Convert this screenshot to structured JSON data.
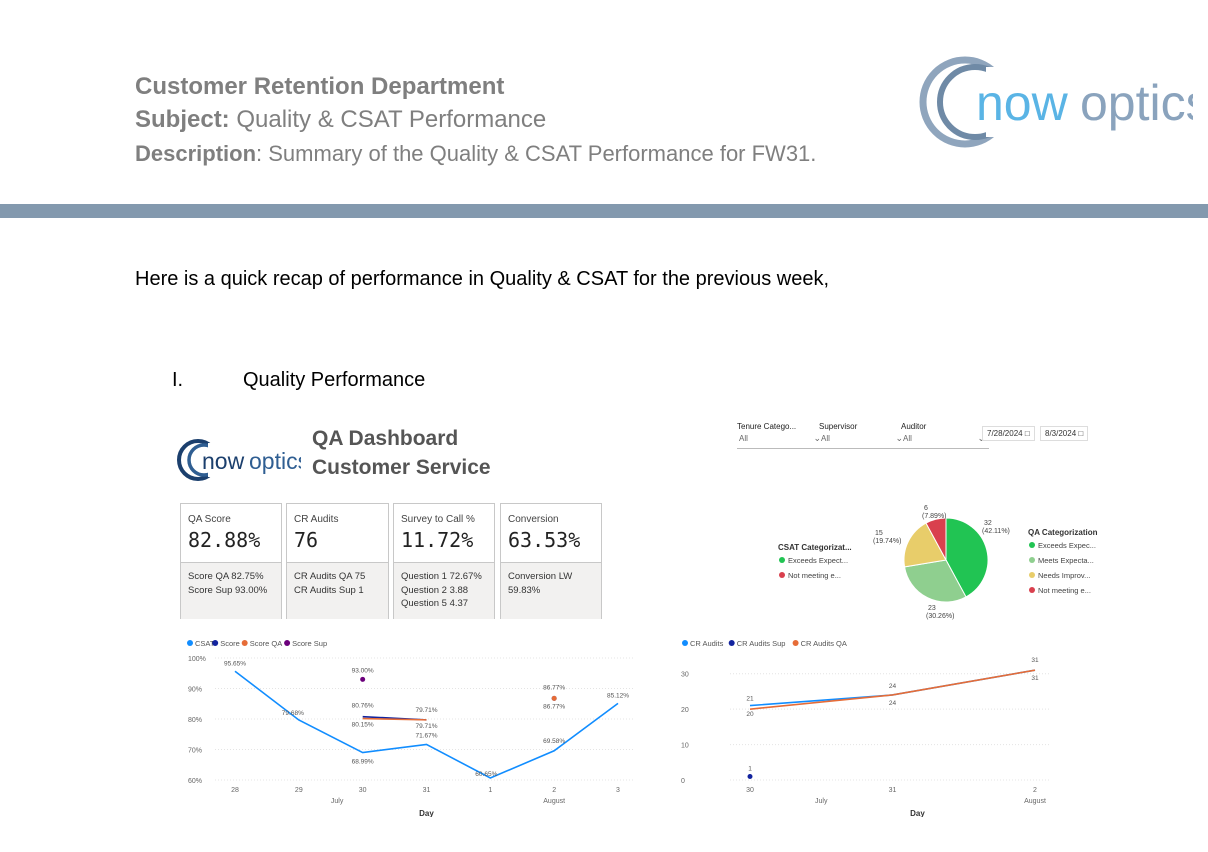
{
  "header": {
    "line1": "Customer Retention Department",
    "subject_label": "Subject:",
    "subject_text": " Quality & CSAT Performance",
    "description_label": "Description",
    "description_text": ": Summary of the Quality & CSAT Performance for FW31."
  },
  "logo_text": {
    "now": "now",
    "optics": "optics"
  },
  "intro": "Here is a quick recap of performance in Quality & CSAT for the previous week,",
  "section": {
    "number": "I.",
    "title": "Quality Performance"
  },
  "dashboard": {
    "title1": "QA Dashboard",
    "title2": "Customer Service",
    "filters": [
      {
        "label": "Tenure Catego...",
        "value": "All"
      },
      {
        "label": "Supervisor",
        "value": "All"
      },
      {
        "label": "Auditor",
        "value": "All"
      }
    ],
    "date_from": "7/28/2024",
    "date_to": "8/3/2024",
    "cards": [
      {
        "label": "QA Score",
        "value": "82.88%",
        "lines": [
          "Score QA 82.75%",
          "Score Sup 93.00%"
        ]
      },
      {
        "label": "CR Audits",
        "value": "76",
        "lines": [
          "CR Audits QA 75",
          "CR Audits Sup 1"
        ]
      },
      {
        "label": "Survey to Call %",
        "value": "11.72%",
        "lines": [
          "Question 1 72.67%",
          "Question 2 3.88",
          "Question 5 4.37"
        ]
      },
      {
        "label": "Conversion",
        "value": "63.53%",
        "lines": [
          "Conversion LW",
          "59.83%"
        ]
      }
    ]
  },
  "chart_data": [
    {
      "type": "pie",
      "title": "",
      "legend_title": "QA Categorization",
      "legend_entries": [
        "Exceeds Expec...",
        "Meets Expecta...",
        "Needs Improv...",
        "Not meeting e..."
      ],
      "slices": [
        {
          "name": "Exceeds Expectations",
          "value": 32,
          "label": "32 (42.11%)",
          "color": "#21c453"
        },
        {
          "name": "Meets Expectations",
          "value": 23,
          "label": "23 (30.26%)",
          "color": "#8fcf8f"
        },
        {
          "name": "Needs Improvement",
          "value": 15,
          "label": "15 (19.74%)",
          "color": "#e8cd6a"
        },
        {
          "name": "Not meeting expectations",
          "value": 6,
          "label": "6 (7.89%)",
          "color": "#d9404e"
        }
      ],
      "second_legend_title": "CSAT Categorizat...",
      "second_legend_entries": [
        {
          "label": "Exceeds Expect...",
          "color": "#21c453"
        },
        {
          "label": "Not meeting e...",
          "color": "#d9404e"
        }
      ]
    },
    {
      "type": "line",
      "xlabel": "Day",
      "ylabel": "",
      "ylim": [
        60,
        100
      ],
      "yticks": [
        "60%",
        "70%",
        "80%",
        "90%",
        "100%"
      ],
      "categories": [
        "28",
        "29",
        "30",
        "31",
        "1",
        "2",
        "3"
      ],
      "month_labels": [
        "July",
        "August"
      ],
      "legend": [
        "CSAT",
        "Score",
        "Score QA",
        "Score Sup"
      ],
      "series": [
        {
          "name": "CSAT",
          "color": "#118dff",
          "values": [
            95.65,
            79.68,
            68.99,
            71.67,
            60.65,
            69.58,
            85.12
          ],
          "labels": [
            "95.65%",
            "79.68%",
            "68.99%",
            "71.67%",
            "60.65%",
            "69.58%",
            "85.12%"
          ]
        },
        {
          "name": "Score",
          "color": "#12239e",
          "values": [
            null,
            null,
            80.76,
            79.71,
            null,
            86.77,
            null
          ],
          "labels": [
            "",
            "",
            "80.76%",
            "79.71%",
            "",
            "86.77%",
            ""
          ]
        },
        {
          "name": "Score QA",
          "color": "#e66c37",
          "values": [
            null,
            null,
            80.15,
            79.71,
            null,
            86.77,
            null
          ],
          "labels": [
            "",
            "",
            "80.15%",
            "79.71%",
            "",
            "86.77%",
            ""
          ]
        },
        {
          "name": "Score Sup",
          "color": "#6b007b",
          "values": [
            null,
            null,
            93.0,
            null,
            null,
            null,
            null
          ],
          "labels": [
            "",
            "",
            "93.00%",
            "",
            "",
            "",
            ""
          ]
        }
      ]
    },
    {
      "type": "line",
      "xlabel": "Day",
      "ylabel": "",
      "ylim": [
        0,
        35
      ],
      "yticks": [
        "0",
        "10",
        "20",
        "30"
      ],
      "categories": [
        "30",
        "31",
        "2"
      ],
      "month_labels": [
        "July",
        "August"
      ],
      "legend": [
        "CR Audits",
        "CR Audits Sup",
        "CR Audits QA"
      ],
      "series": [
        {
          "name": "CR Audits",
          "color": "#118dff",
          "values": [
            21,
            24,
            31
          ],
          "labels": [
            "21",
            "24",
            "31"
          ]
        },
        {
          "name": "CR Audits Sup",
          "color": "#12239e",
          "values": [
            1,
            null,
            null
          ],
          "labels": [
            "1",
            "",
            ""
          ]
        },
        {
          "name": "CR Audits QA",
          "color": "#e66c37",
          "values": [
            20,
            24,
            31
          ],
          "labels": [
            "20",
            "24",
            "31"
          ]
        }
      ]
    }
  ]
}
